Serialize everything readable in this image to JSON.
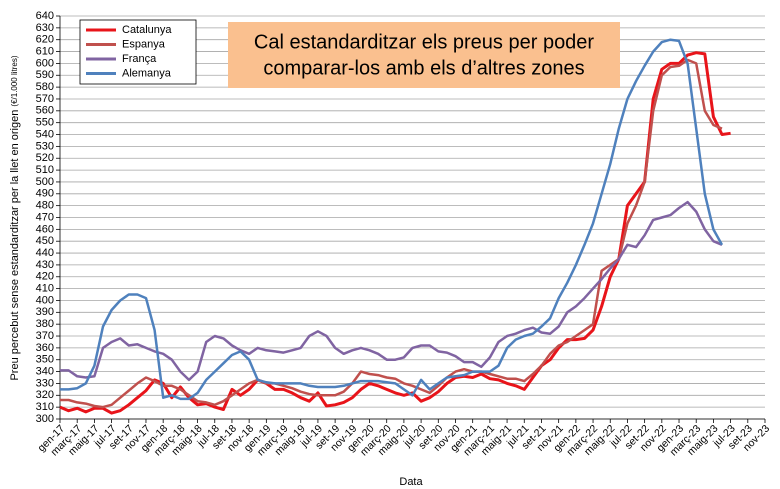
{
  "chart_data": {
    "type": "line",
    "annotation": [
      "Cal estandarditzar els preus per poder",
      "comparar-los amb els d’altres zones"
    ],
    "xlabel": "Data",
    "ylabel": "Preu percebut sense estandarditzar per la llet en origen",
    "ylabel_unit": "(€/1.000 litres)",
    "categories": [
      "gen-17",
      null,
      "març-17",
      null,
      "maig-17",
      null,
      "jul-17",
      null,
      "set-17",
      null,
      "nov-17",
      null,
      "gen-18",
      null,
      "març-18",
      null,
      "maig-18",
      null,
      "jul-18",
      null,
      "set-18",
      null,
      "nov-18",
      null,
      "gen-19",
      null,
      "març-19",
      null,
      "maig-19",
      null,
      "jul-19",
      null,
      "set-19",
      null,
      "nov-19",
      null,
      "gen-20",
      null,
      "març-20",
      null,
      "maig-20",
      null,
      "jul-20",
      null,
      "set-20",
      null,
      "nov-20",
      null,
      "gen-21",
      null,
      "març-21",
      null,
      "maig-21",
      null,
      "jul-21",
      null,
      "set-21",
      null,
      "nov-21",
      null,
      "gen-22",
      null,
      "març-22",
      null,
      "maig-22",
      null,
      "jul-22",
      null,
      "set-22",
      null,
      "nov-22",
      null,
      "gen-23",
      null,
      "març-23",
      null,
      "maig-23",
      null,
      "jul-23",
      null,
      "set-23",
      null,
      "nov-23"
    ],
    "series": [
      {
        "name": "Catalunya",
        "color": "#e8141a",
        "width": 3,
        "values": [
          310,
          307,
          309,
          306,
          309,
          309,
          305,
          307,
          312,
          318,
          324,
          333,
          330,
          318,
          327,
          318,
          312,
          313,
          310,
          308,
          325,
          320,
          325,
          333,
          330,
          325,
          325,
          322,
          318,
          315,
          322,
          311,
          312,
          314,
          318,
          325,
          330,
          328,
          325,
          322,
          320,
          322,
          315,
          318,
          323,
          330,
          335,
          336,
          335,
          338,
          334,
          333,
          330,
          328,
          325,
          335,
          345,
          350,
          360,
          367,
          367,
          368,
          375,
          395,
          420,
          435,
          480,
          490,
          500,
          570,
          595,
          600,
          600,
          607,
          609,
          608,
          555,
          540,
          541,
          null,
          null,
          null,
          null
        ]
      },
      {
        "name": "Espanya",
        "color": "#c0504d",
        "width": 2.5,
        "values": [
          316,
          316,
          314,
          313,
          311,
          310,
          312,
          318,
          324,
          330,
          335,
          332,
          328,
          328,
          325,
          320,
          315,
          314,
          312,
          315,
          320,
          325,
          330,
          333,
          330,
          330,
          328,
          326,
          323,
          321,
          320,
          320,
          320,
          323,
          330,
          340,
          338,
          337,
          335,
          334,
          330,
          328,
          325,
          322,
          328,
          335,
          340,
          342,
          340,
          340,
          338,
          336,
          334,
          334,
          332,
          338,
          345,
          355,
          362,
          365,
          370,
          375,
          380,
          425,
          430,
          435,
          465,
          480,
          500,
          560,
          590,
          597,
          598,
          603,
          600,
          560,
          548,
          545,
          null,
          null,
          null,
          null,
          null
        ]
      },
      {
        "name": "França",
        "color": "#8064a2",
        "width": 2.5,
        "values": [
          341,
          341,
          336,
          335,
          336,
          360,
          365,
          368,
          362,
          363,
          360,
          357,
          355,
          350,
          340,
          333,
          340,
          365,
          370,
          368,
          362,
          358,
          355,
          360,
          358,
          357,
          356,
          358,
          360,
          370,
          374,
          370,
          360,
          355,
          358,
          360,
          358,
          355,
          350,
          350,
          352,
          360,
          362,
          362,
          357,
          356,
          353,
          348,
          348,
          344,
          352,
          365,
          370,
          372,
          375,
          377,
          373,
          372,
          378,
          390,
          395,
          402,
          410,
          418,
          427,
          435,
          447,
          445,
          455,
          468,
          470,
          472,
          478,
          483,
          475,
          460,
          450,
          447,
          null,
          null,
          null,
          null,
          null
        ]
      },
      {
        "name": "Alemanya",
        "color": "#4f81bd",
        "width": 2.5,
        "values": [
          325,
          325,
          326,
          330,
          345,
          378,
          392,
          400,
          405,
          405,
          402,
          375,
          318,
          320,
          317,
          317,
          322,
          333,
          340,
          347,
          354,
          357,
          350,
          333,
          331,
          330,
          330,
          330,
          330,
          328,
          327,
          327,
          327,
          328,
          330,
          332,
          332,
          332,
          331,
          330,
          325,
          320,
          333,
          325,
          330,
          335,
          336,
          337,
          340,
          340,
          340,
          345,
          360,
          367,
          370,
          372,
          378,
          385,
          402,
          415,
          430,
          447,
          465,
          490,
          515,
          545,
          570,
          585,
          598,
          610,
          618,
          620,
          619,
          600,
          545,
          490,
          460,
          447,
          null,
          null,
          null,
          null,
          null
        ]
      }
    ],
    "ylim": [
      300,
      640
    ],
    "yticks": [
      300,
      310,
      320,
      330,
      340,
      350,
      360,
      370,
      380,
      390,
      400,
      410,
      420,
      430,
      440,
      450,
      460,
      470,
      480,
      490,
      500,
      510,
      520,
      530,
      540,
      550,
      560,
      570,
      580,
      590,
      600,
      610,
      620,
      630,
      640
    ],
    "grid": true,
    "legend": "top-left",
    "annotation_color": "#fac08f"
  }
}
